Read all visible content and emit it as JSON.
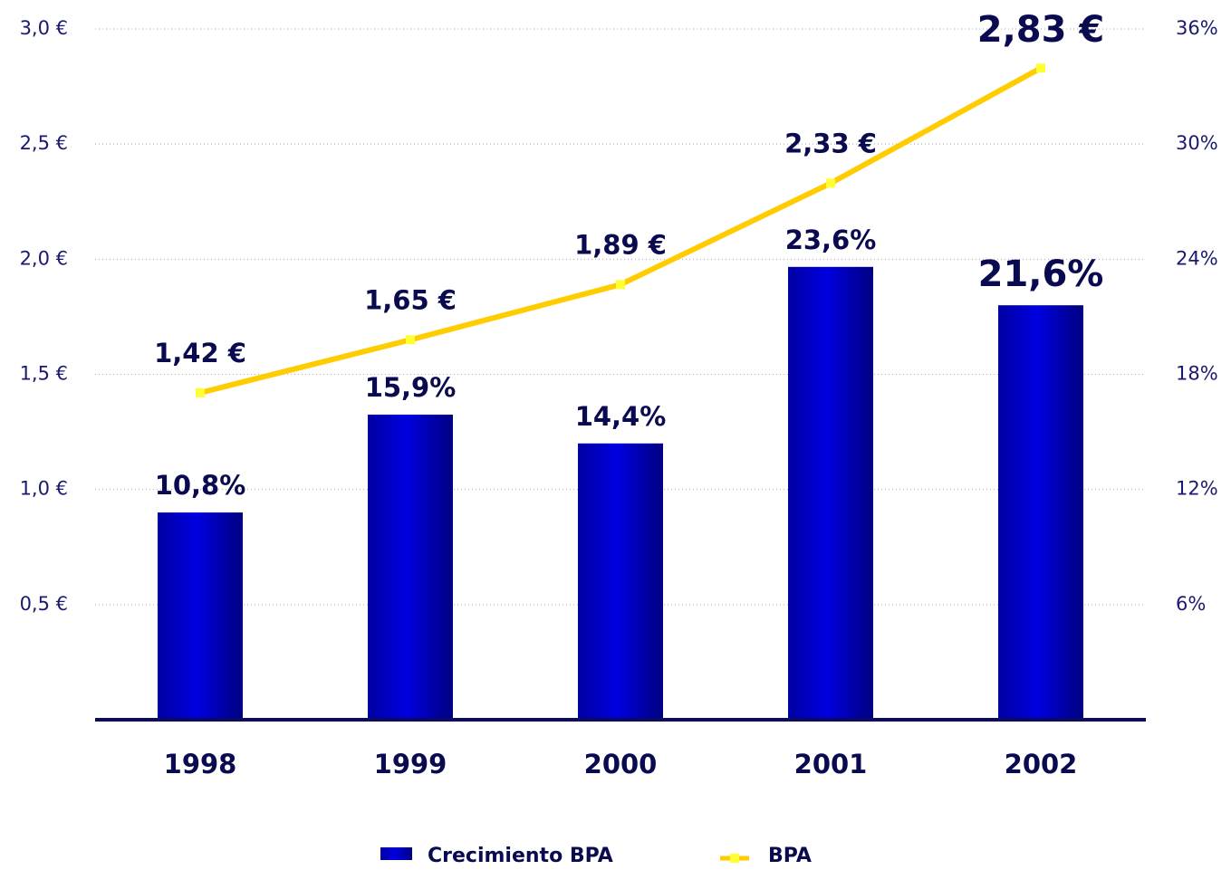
{
  "chart_data": {
    "type": "bar-line",
    "categories": [
      "1998",
      "1999",
      "2000",
      "2001",
      "2002"
    ],
    "series": [
      {
        "name": "Crecimiento BPA",
        "color": "#0000cc",
        "axis": "y2",
        "type": "bar",
        "values": [
          10.8,
          15.9,
          14.4,
          23.6,
          21.6
        ],
        "value_labels": [
          "10,8%",
          "15,9%",
          "14,4%",
          "23,6%",
          "21,6%"
        ]
      },
      {
        "name": "BPA",
        "color": "#ffcc00",
        "axis": "y",
        "type": "line",
        "values": [
          1.42,
          1.65,
          1.89,
          2.33,
          2.83
        ],
        "value_labels": [
          "1,42 €",
          "1,65 €",
          "1,89 €",
          "2,33 €",
          "2,83 €"
        ]
      }
    ],
    "ylim": [
      0,
      3.0
    ],
    "yticks": [
      {
        "value": 0.5,
        "label": "0,5 €"
      },
      {
        "value": 1.0,
        "label": "1,0 €"
      },
      {
        "value": 1.5,
        "label": "1,5 €"
      },
      {
        "value": 2.0,
        "label": "2,0 €"
      },
      {
        "value": 2.5,
        "label": "2,5 €"
      },
      {
        "value": 3.0,
        "label": "3,0 €"
      }
    ],
    "y2lim": [
      0,
      36
    ],
    "y2ticks": [
      {
        "value": 6,
        "label": "6%"
      },
      {
        "value": 12,
        "label": "12%"
      },
      {
        "value": 18,
        "label": "18%"
      },
      {
        "value": 24,
        "label": "24%"
      },
      {
        "value": 30,
        "label": "30%"
      },
      {
        "value": 36,
        "label": "36%"
      }
    ],
    "grid": true,
    "legend": "bottom"
  }
}
